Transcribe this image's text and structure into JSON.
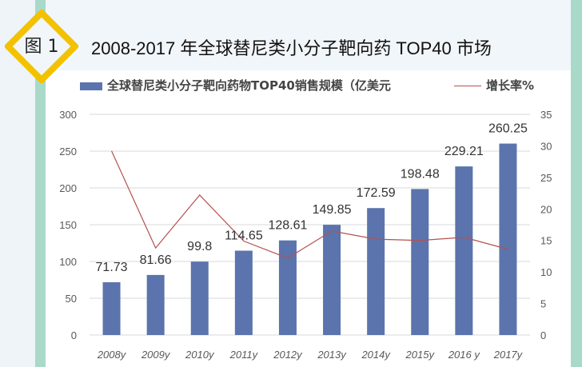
{
  "header": {
    "badge": "图 1",
    "title": "2008-2017 年全球替尼类小分子靶向药 TOP40 市场"
  },
  "colors": {
    "bar": "#5b74ad",
    "line": "#b4514f",
    "badge": "#f2c200",
    "strip": "#a9d9c8"
  },
  "chart_data": {
    "type": "bar+line",
    "categories": [
      "2008y",
      "2009y",
      "2010y",
      "2011y",
      "2012y",
      "2013y",
      "2014y",
      "2015y",
      "2016 y",
      "2017y"
    ],
    "series": [
      {
        "name": "全球替尼类小分子靶向药物TOP40销售规模（亿美元",
        "type": "bar",
        "axis": "left",
        "values": [
          71.73,
          81.66,
          99.8,
          114.65,
          128.61,
          149.85,
          172.59,
          198.48,
          229.21,
          260.25
        ],
        "labels": [
          "71.73",
          "81.66",
          "99.8",
          "114.65",
          "128.61",
          "149.85",
          "172.59",
          "198.48",
          "229.21",
          "260.25"
        ]
      },
      {
        "name": "增长率%",
        "type": "line",
        "axis": "right",
        "values": [
          29.2,
          13.8,
          22.2,
          14.9,
          12.2,
          16.5,
          15.2,
          15.0,
          15.5,
          13.6
        ]
      }
    ],
    "y_left": {
      "range": [
        0,
        300
      ],
      "ticks": [
        "0",
        "50",
        "100",
        "150",
        "200",
        "250",
        "300"
      ]
    },
    "y_right": {
      "range": [
        0,
        35
      ],
      "ticks": [
        "0",
        "5",
        "10",
        "15",
        "20",
        "25",
        "30",
        "35"
      ]
    },
    "grid": true,
    "legend": "top"
  }
}
